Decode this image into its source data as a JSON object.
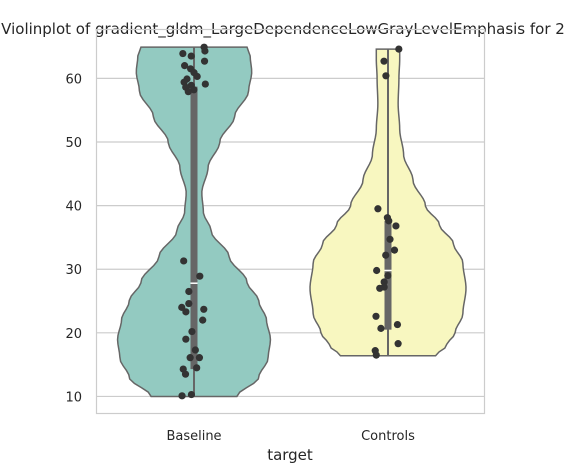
{
  "chart_data": {
    "type": "violin",
    "title": "Violinplot of gradient_gldm_LargeDependenceLowGrayLevelEmphasis for 2",
    "xlabel": "target",
    "ylabel": "",
    "categories": [
      "Baseline",
      "Controls"
    ],
    "yticks": [
      10,
      20,
      30,
      40,
      50,
      60
    ],
    "ylim": [
      7.4,
      67.6
    ],
    "grid": "horizontal",
    "colors": {
      "Baseline": "#93cac1",
      "Controls": "#f8f7c0",
      "outline": "#666666",
      "points": "#333333",
      "box": "#666666",
      "grid": "#cccccc",
      "frame": "#cccccc"
    },
    "series": [
      {
        "category": "Baseline",
        "min": 10.0,
        "q1": 14.3,
        "median": 27.8,
        "q3": 58.7,
        "max": 64.9,
        "points": [
          64.9,
          64.3,
          63.9,
          63.5,
          62.7,
          62.0,
          61.5,
          60.9,
          60.3,
          59.9,
          59.4,
          59.1,
          58.9,
          58.6,
          58.2,
          57.9,
          31.3,
          28.9,
          26.5,
          24.6,
          24.0,
          23.7,
          23.3,
          22.0,
          20.2,
          19.0,
          17.3,
          16.1,
          16.1,
          14.5,
          14.3,
          13.5,
          10.3,
          10.1
        ],
        "width_profile": [
          [
            10.0,
            0.55
          ],
          [
            13.0,
            0.83
          ],
          [
            16.0,
            0.95
          ],
          [
            19.0,
            0.98
          ],
          [
            22.0,
            0.93
          ],
          [
            25.0,
            0.83
          ],
          [
            28.0,
            0.68
          ],
          [
            32.0,
            0.45
          ],
          [
            36.0,
            0.22
          ],
          [
            39.0,
            0.12
          ],
          [
            42.0,
            0.1
          ],
          [
            46.0,
            0.18
          ],
          [
            50.0,
            0.33
          ],
          [
            54.0,
            0.52
          ],
          [
            58.0,
            0.7
          ],
          [
            61.0,
            0.74
          ],
          [
            63.5,
            0.72
          ],
          [
            64.9,
            0.68
          ]
        ]
      },
      {
        "category": "Controls",
        "min": 16.4,
        "q1": 20.5,
        "median": 29.8,
        "q3": 37.6,
        "max": 64.6,
        "points": [
          64.6,
          62.7,
          60.4,
          39.5,
          38.1,
          37.6,
          36.8,
          34.7,
          33.0,
          32.2,
          29.8,
          29.0,
          28.0,
          27.2,
          27.0,
          22.6,
          21.3,
          20.7,
          18.3,
          17.2,
          16.5
        ],
        "width_profile": [
          [
            16.4,
            0.61
          ],
          [
            18.0,
            0.75
          ],
          [
            20.0,
            0.86
          ],
          [
            23.0,
            0.96
          ],
          [
            27.0,
            1.0
          ],
          [
            31.0,
            0.96
          ],
          [
            34.0,
            0.84
          ],
          [
            37.0,
            0.66
          ],
          [
            40.0,
            0.48
          ],
          [
            44.0,
            0.32
          ],
          [
            48.0,
            0.2
          ],
          [
            52.0,
            0.15
          ],
          [
            56.0,
            0.13
          ],
          [
            60.0,
            0.14
          ],
          [
            63.0,
            0.15
          ],
          [
            64.6,
            0.15
          ]
        ]
      }
    ]
  }
}
